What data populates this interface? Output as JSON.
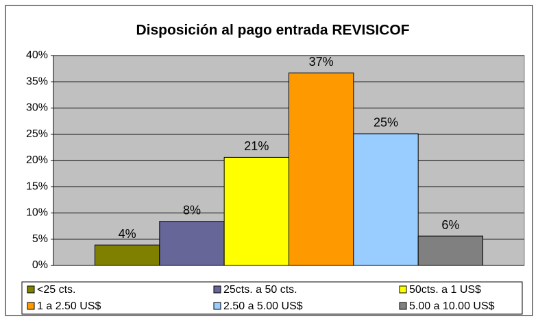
{
  "chart_data": {
    "type": "bar",
    "title": "Disposición al pago entrada REVISICOF",
    "series": [
      {
        "name": "<25 cts.",
        "color": "#808000",
        "values": [
          3.9
        ],
        "value_labels": [
          "4%"
        ]
      },
      {
        "name": "25cts. a 50 cts.",
        "color": "#666699",
        "values": [
          8.4
        ],
        "value_labels": [
          "8%"
        ]
      },
      {
        "name": "50cts. a 1 US$",
        "color": "#ffff00",
        "values": [
          20.6
        ],
        "value_labels": [
          "21%"
        ]
      },
      {
        "name": "1 a 2.50 US$",
        "color": "#ff9900",
        "values": [
          36.7
        ],
        "value_labels": [
          "37%"
        ]
      },
      {
        "name": "2.50 a 5.00 US$",
        "color": "#99ccff",
        "values": [
          25.1
        ],
        "value_labels": [
          "25%"
        ]
      },
      {
        "name": "5.00 a 10.00 US$",
        "color": "#808080",
        "values": [
          5.6
        ],
        "value_labels": [
          "6%"
        ]
      }
    ],
    "ylim": [
      0,
      40
    ],
    "yticks": [
      {
        "value": 0,
        "label": "0%"
      },
      {
        "value": 5,
        "label": "5%"
      },
      {
        "value": 10,
        "label": "10%"
      },
      {
        "value": 15,
        "label": "15%"
      },
      {
        "value": 20,
        "label": "20%"
      },
      {
        "value": 25,
        "label": "25%"
      },
      {
        "value": 30,
        "label": "30%"
      },
      {
        "value": 35,
        "label": "35%"
      },
      {
        "value": 40,
        "label": "40%"
      }
    ],
    "grid": true,
    "legend": "bottom"
  }
}
